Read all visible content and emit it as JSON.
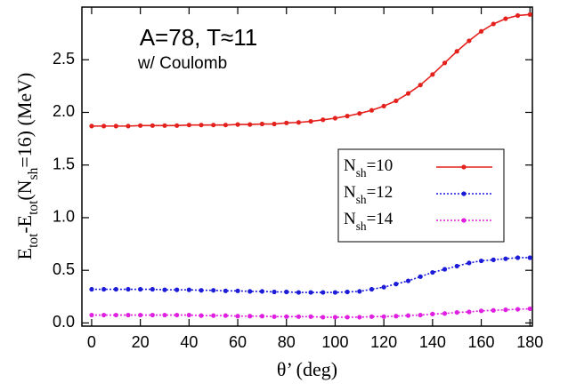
{
  "chart_data": {
    "type": "line",
    "annotations": [
      "A=78, T≈11",
      "w/ Coulomb"
    ],
    "x_label": "θ’ (deg)",
    "y_label": "Etot-Etot(Nsh=16) (MeV)",
    "x": [
      0,
      5,
      10,
      15,
      20,
      25,
      30,
      35,
      40,
      45,
      50,
      55,
      60,
      65,
      70,
      75,
      80,
      85,
      90,
      95,
      100,
      105,
      110,
      115,
      120,
      125,
      130,
      135,
      140,
      145,
      150,
      155,
      160,
      165,
      170,
      175,
      180
    ],
    "series": [
      {
        "name": "Nsh=10",
        "color": "#e4211c",
        "style": "solid",
        "values": [
          1.87,
          1.87,
          1.87,
          1.87,
          1.875,
          1.875,
          1.875,
          1.875,
          1.88,
          1.88,
          1.88,
          1.88,
          1.885,
          1.885,
          1.89,
          1.89,
          1.9,
          1.905,
          1.915,
          1.93,
          1.945,
          1.965,
          1.99,
          2.02,
          2.06,
          2.11,
          2.18,
          2.26,
          2.36,
          2.47,
          2.58,
          2.68,
          2.77,
          2.84,
          2.89,
          2.92,
          2.93
        ]
      },
      {
        "name": "Nsh=12",
        "color": "#1c1cd8",
        "style": "dotted",
        "values": [
          0.32,
          0.32,
          0.32,
          0.32,
          0.32,
          0.32,
          0.315,
          0.315,
          0.315,
          0.31,
          0.31,
          0.305,
          0.305,
          0.3,
          0.3,
          0.295,
          0.295,
          0.29,
          0.29,
          0.29,
          0.29,
          0.295,
          0.3,
          0.32,
          0.34,
          0.37,
          0.4,
          0.44,
          0.48,
          0.51,
          0.54,
          0.57,
          0.59,
          0.6,
          0.61,
          0.62,
          0.62
        ]
      },
      {
        "name": "Nsh=14",
        "color": "#e020e0",
        "style": "dotted",
        "values": [
          0.075,
          0.075,
          0.075,
          0.075,
          0.075,
          0.075,
          0.075,
          0.075,
          0.075,
          0.07,
          0.07,
          0.07,
          0.065,
          0.065,
          0.065,
          0.06,
          0.06,
          0.06,
          0.06,
          0.055,
          0.055,
          0.055,
          0.055,
          0.06,
          0.06,
          0.065,
          0.07,
          0.075,
          0.085,
          0.09,
          0.1,
          0.105,
          0.115,
          0.12,
          0.125,
          0.13,
          0.135
        ]
      }
    ],
    "xlim": [
      -4,
      181
    ],
    "ylim": [
      -0.03,
      3.0
    ],
    "xticks": [
      0,
      20,
      40,
      60,
      80,
      100,
      120,
      140,
      160,
      180
    ],
    "yticks": [
      {
        "value": 0,
        "label": "0.0"
      },
      0.5,
      {
        "value": 1,
        "label": "1.0"
      },
      1.5,
      {
        "value": 2,
        "label": "2.0"
      },
      2.5
    ],
    "legend": "center-right"
  }
}
